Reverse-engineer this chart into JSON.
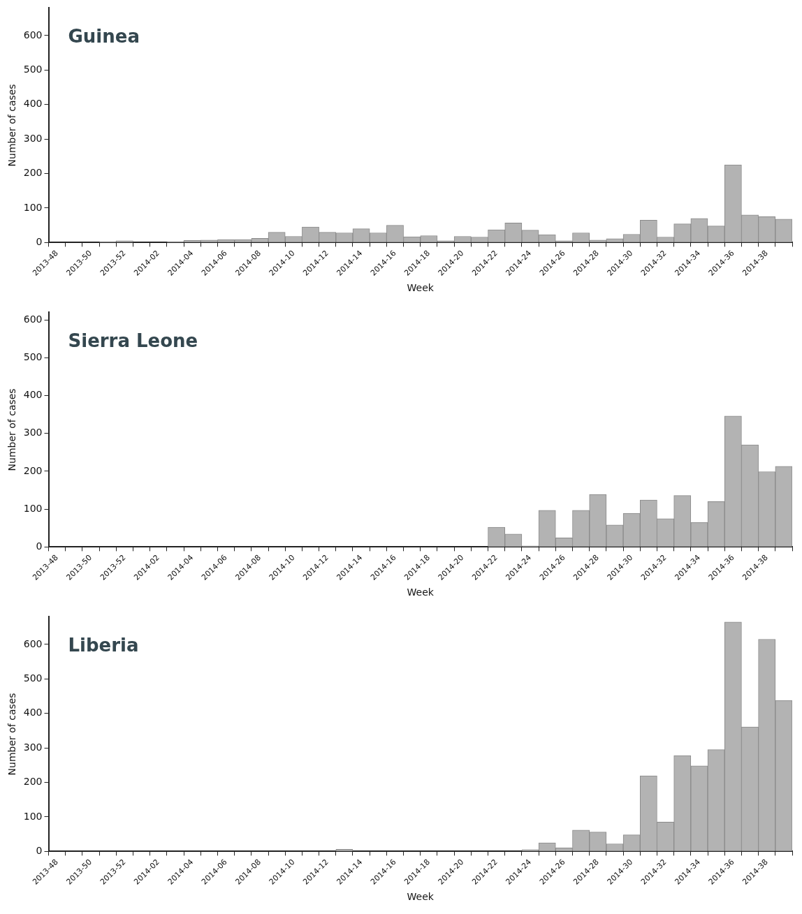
{
  "chart_data": [
    {
      "type": "bar",
      "title": "Guinea",
      "xlabel": "Week",
      "ylabel": "Number of cases",
      "color": "#b3b3b3",
      "categories": [
        "2013-48",
        null,
        "2013-50",
        null,
        "2013-52",
        null,
        "2014-02",
        null,
        "2014-04",
        null,
        "2014-06",
        null,
        "2014-08",
        null,
        "2014-10",
        null,
        "2014-12",
        null,
        "2014-14",
        null,
        "2014-16",
        null,
        "2014-18",
        null,
        "2014-20",
        null,
        "2014-22",
        null,
        "2014-24",
        null,
        "2014-26",
        null,
        "2014-28",
        null,
        "2014-30",
        null,
        "2014-32",
        null,
        "2014-34",
        null,
        "2014-36",
        null,
        "2014-38",
        null
      ],
      "values": [
        0,
        0,
        0,
        3,
        5,
        0,
        0,
        3,
        6,
        7,
        8,
        8,
        12,
        30,
        18,
        45,
        30,
        28,
        40,
        28,
        50,
        17,
        20,
        5,
        18,
        16,
        37,
        57,
        36,
        23,
        5,
        28,
        7,
        11,
        24,
        65,
        16,
        54,
        70,
        48,
        225,
        80,
        75,
        68
      ],
      "ylim": [
        0,
        680
      ],
      "yticks": [
        0,
        100,
        200,
        300,
        400,
        500,
        600
      ],
      "grid": false
    },
    {
      "type": "bar",
      "title": "Sierra Leone",
      "xlabel": "Week",
      "ylabel": "Number of cases",
      "color": "#b3b3b3",
      "categories": [
        "2013-48",
        null,
        "2013-50",
        null,
        "2013-52",
        null,
        "2014-02",
        null,
        "2014-04",
        null,
        "2014-06",
        null,
        "2014-08",
        null,
        "2014-10",
        null,
        "2014-12",
        null,
        "2014-14",
        null,
        "2014-16",
        null,
        "2014-18",
        null,
        "2014-20",
        null,
        "2014-22",
        null,
        "2014-24",
        null,
        "2014-26",
        null,
        "2014-28",
        null,
        "2014-30",
        null,
        "2014-32",
        null,
        "2014-34",
        null,
        "2014-36",
        null,
        "2014-38",
        null
      ],
      "values": [
        0,
        0,
        0,
        0,
        0,
        0,
        0,
        0,
        0,
        0,
        0,
        0,
        0,
        0,
        0,
        0,
        0,
        0,
        0,
        0,
        0,
        0,
        0,
        0,
        0,
        0,
        52,
        34,
        3,
        97,
        24,
        97,
        139,
        58,
        89,
        124,
        75,
        136,
        65,
        120,
        346,
        270,
        199,
        213
      ],
      "ylim": [
        0,
        620
      ],
      "yticks": [
        0,
        100,
        200,
        300,
        400,
        500,
        600
      ],
      "grid": false
    },
    {
      "type": "bar",
      "title": "Liberia",
      "xlabel": "Week",
      "ylabel": "Number of cases",
      "color": "#b3b3b3",
      "categories": [
        "2013-48",
        null,
        "2013-50",
        null,
        "2013-52",
        null,
        "2014-02",
        null,
        "2014-04",
        null,
        "2014-06",
        null,
        "2014-08",
        null,
        "2014-10",
        null,
        "2014-12",
        null,
        "2014-14",
        null,
        "2014-16",
        null,
        "2014-18",
        null,
        "2014-20",
        null,
        "2014-22",
        null,
        "2014-24",
        null,
        "2014-26",
        null,
        "2014-28",
        null,
        "2014-30",
        null,
        "2014-32",
        null,
        "2014-34",
        null,
        "2014-36",
        null,
        "2014-38",
        null
      ],
      "values": [
        0,
        0,
        0,
        0,
        0,
        0,
        0,
        0,
        0,
        0,
        0,
        0,
        0,
        0,
        0,
        0,
        0,
        6,
        0,
        0,
        0,
        0,
        0,
        0,
        0,
        0,
        0,
        0,
        5,
        25,
        10,
        62,
        56,
        22,
        48,
        219,
        85,
        278,
        248,
        295,
        665,
        361,
        615,
        438
      ],
      "ylim": [
        0,
        680
      ],
      "yticks": [
        0,
        100,
        200,
        300,
        400,
        500,
        600
      ],
      "grid": false
    }
  ]
}
